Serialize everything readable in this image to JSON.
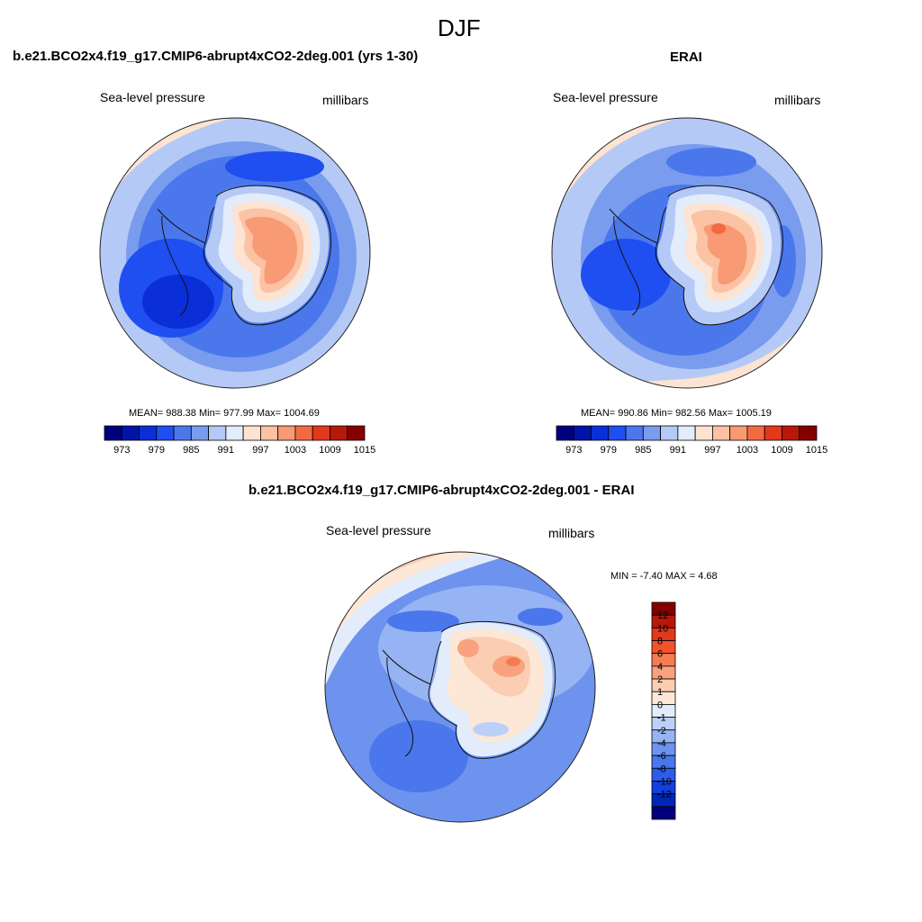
{
  "chart_data": [
    {
      "type": "heatmap",
      "projection": "south-polar-stereographic",
      "season": "DJF",
      "title": "b.e21.BCO2x4.f19_g17.CMIP6-abrupt4xCO2-2deg.001 (yrs 1-30)",
      "variable": "Sea-level pressure",
      "units": "millibars",
      "stats": "MEAN= 988.38  Min= 977.99  Max= 1004.69",
      "mean": 988.38,
      "min": 977.99,
      "max": 1004.69,
      "contour_levels": [
        973,
        976,
        979,
        982,
        985,
        988,
        991,
        994,
        997,
        1000,
        1003,
        1006,
        1009,
        1012,
        1015
      ],
      "colorbar_labels": [
        "973",
        "979",
        "985",
        "991",
        "997",
        "1003",
        "1009",
        "1015"
      ]
    },
    {
      "type": "heatmap",
      "projection": "south-polar-stereographic",
      "season": "DJF",
      "title": "ERAI",
      "variable": "Sea-level pressure",
      "units": "millibars",
      "stats": "MEAN= 990.86  Min= 982.56  Max= 1005.19",
      "mean": 990.86,
      "min": 982.56,
      "max": 1005.19,
      "contour_levels": [
        973,
        976,
        979,
        982,
        985,
        988,
        991,
        994,
        997,
        1000,
        1003,
        1006,
        1009,
        1012,
        1015
      ],
      "colorbar_labels": [
        "973",
        "979",
        "985",
        "991",
        "997",
        "1003",
        "1009",
        "1015"
      ]
    },
    {
      "type": "heatmap",
      "projection": "south-polar-stereographic",
      "season": "DJF",
      "title": "b.e21.BCO2x4.f19_g17.CMIP6-abrupt4xCO2-2deg.001 - ERAI",
      "variable": "Sea-level pressure",
      "units": "millibars",
      "stats": "MIN =  -7.40 MAX =   4.68",
      "min": -7.4,
      "max": 4.68,
      "colorbar_labels": [
        "12",
        "10",
        "8",
        "6",
        "4",
        "2",
        "1",
        "0",
        "-1",
        "-2",
        "-4",
        "-6",
        "-8",
        "-10",
        "-12"
      ]
    }
  ],
  "page": {
    "title": "DJF"
  },
  "colors": {
    "abs_scale": [
      "#00007f",
      "#0014a8",
      "#0a2fd8",
      "#1f4ff0",
      "#4a78ec",
      "#7a9cee",
      "#b4c9f6",
      "#e2ecfb",
      "#fde3d1",
      "#fbc2a3",
      "#f89a73",
      "#f26a42",
      "#e2381c",
      "#b8180a",
      "#840000"
    ],
    "diff_scale": [
      "#840000",
      "#b8180a",
      "#e2381c",
      "#f2522c",
      "#f57b52",
      "#f8a27f",
      "#fbcdb2",
      "#fde8d8",
      "#e3ecfb",
      "#bcd0f7",
      "#96b3f3",
      "#6d93ef",
      "#4a77ec",
      "#2e5ce8",
      "#123fdd",
      "#0026b8",
      "#00007f"
    ]
  }
}
